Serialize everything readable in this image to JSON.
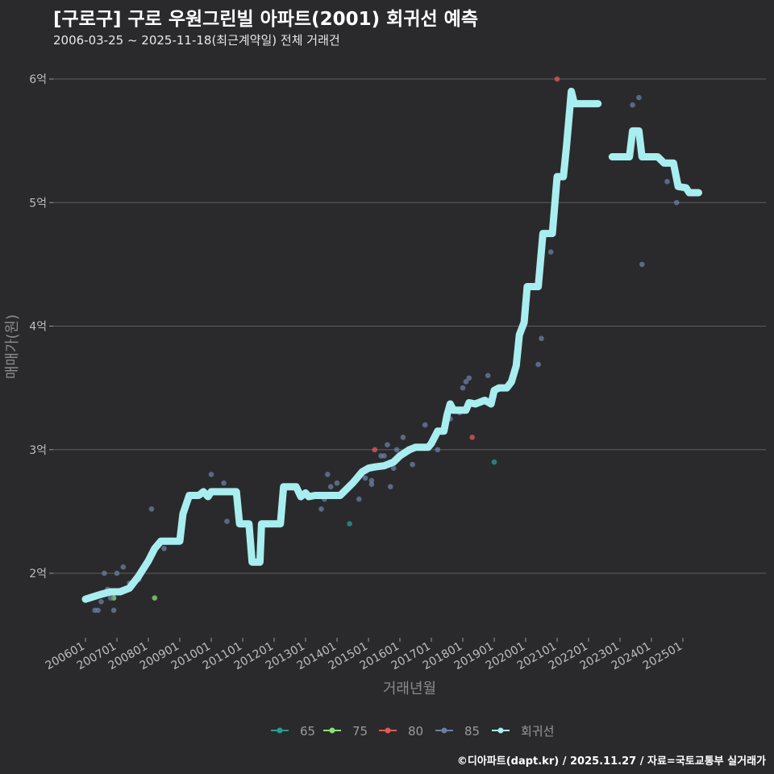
{
  "header": {
    "title": "[구로구] 구로 우원그린빌 아파트(2001) 회귀선 예측",
    "subtitle": "2006-03-25 ~ 2025-11-18(최근계약일) 전체 거래건"
  },
  "footer": {
    "credit": "©디아파트(dapt.kr) / 2025.11.27 / 자료=국토교통부 실거래가"
  },
  "colors": {
    "background": "#2a2a2c",
    "grid": "#5e5e5e",
    "s65": "#2a9d8f",
    "s75": "#8ee07a",
    "s80": "#e05a5a",
    "s85": "#6b7fa3",
    "regression": "#a8eef0"
  },
  "chart_data": {
    "type": "scatter",
    "title": "[구로구] 구로 우원그린빌 아파트(2001) 회귀선 예측",
    "xlabel": "거래년월",
    "ylabel": "매매가(원)",
    "xlim": [
      2006.0,
      2026.7
    ],
    "ylim": [
      1.5,
      6.3
    ],
    "y_ticks": [
      2,
      3,
      4,
      5,
      6
    ],
    "y_tick_labels": [
      "2억",
      "3억",
      "4억",
      "5억",
      "6억"
    ],
    "x_ticks": [
      2006,
      2007,
      2008,
      2009,
      2010,
      2011,
      2012,
      2013,
      2014,
      2015,
      2016,
      2017,
      2018,
      2019,
      2020,
      2021,
      2022,
      2023,
      2024,
      2025
    ],
    "x_tick_labels": [
      "200601",
      "200701",
      "200801",
      "200901",
      "201001",
      "201101",
      "201201",
      "201301",
      "201401",
      "201501",
      "201601",
      "201701",
      "201801",
      "201901",
      "202001",
      "202101",
      "202201",
      "202301",
      "202401",
      "202501"
    ],
    "legend": [
      "65",
      "75",
      "80",
      "85",
      "회귀선"
    ],
    "legend_position": "bottom",
    "series": [
      {
        "name": "65",
        "points": [
          [
            2014.4,
            2.4
          ],
          [
            2019.0,
            2.9
          ]
        ]
      },
      {
        "name": "75",
        "points": [
          [
            2006.9,
            1.8
          ],
          [
            2008.2,
            1.8
          ]
        ]
      },
      {
        "name": "80",
        "points": [
          [
            2015.2,
            3.0
          ],
          [
            2018.3,
            3.1
          ],
          [
            2021.0,
            6.0
          ]
        ]
      },
      {
        "name": "85",
        "points": [
          [
            2006.3,
            1.7
          ],
          [
            2006.4,
            1.7
          ],
          [
            2006.5,
            1.77
          ],
          [
            2006.6,
            2.0
          ],
          [
            2006.7,
            1.87
          ],
          [
            2006.8,
            1.8
          ],
          [
            2006.9,
            1.7
          ],
          [
            2007.0,
            2.0
          ],
          [
            2007.2,
            2.05
          ],
          [
            2007.4,
            1.92
          ],
          [
            2007.7,
            1.95
          ],
          [
            2008.1,
            2.52
          ],
          [
            2008.5,
            2.2
          ],
          [
            2009.3,
            2.62
          ],
          [
            2009.7,
            2.65
          ],
          [
            2010.0,
            2.8
          ],
          [
            2010.4,
            2.73
          ],
          [
            2010.5,
            2.42
          ],
          [
            2013.5,
            2.52
          ],
          [
            2013.6,
            2.6
          ],
          [
            2013.7,
            2.8
          ],
          [
            2013.8,
            2.7
          ],
          [
            2014.0,
            2.73
          ],
          [
            2014.7,
            2.6
          ],
          [
            2014.9,
            2.77
          ],
          [
            2015.1,
            2.75
          ],
          [
            2015.1,
            2.72
          ],
          [
            2015.4,
            2.95
          ],
          [
            2015.5,
            2.95
          ],
          [
            2015.6,
            3.04
          ],
          [
            2015.7,
            2.7
          ],
          [
            2015.8,
            2.85
          ],
          [
            2015.9,
            3.0
          ],
          [
            2016.1,
            3.1
          ],
          [
            2016.4,
            2.88
          ],
          [
            2016.8,
            3.2
          ],
          [
            2017.2,
            3.0
          ],
          [
            2017.6,
            3.25
          ],
          [
            2017.9,
            3.3
          ],
          [
            2018.0,
            3.5
          ],
          [
            2018.1,
            3.55
          ],
          [
            2018.2,
            3.58
          ],
          [
            2018.8,
            3.6
          ],
          [
            2020.4,
            3.69
          ],
          [
            2020.5,
            3.9
          ],
          [
            2020.8,
            4.6
          ],
          [
            2021.5,
            5.8
          ],
          [
            2023.4,
            5.79
          ],
          [
            2023.6,
            5.85
          ],
          [
            2023.7,
            4.5
          ],
          [
            2024.5,
            5.17
          ],
          [
            2024.8,
            5.0
          ]
        ]
      }
    ],
    "regression_line": [
      [
        2006.0,
        1.79
      ],
      [
        2006.5,
        1.83
      ],
      [
        2006.8,
        1.85
      ],
      [
        2007.1,
        1.85
      ],
      [
        2007.4,
        1.88
      ],
      [
        2007.7,
        1.98
      ],
      [
        2008.0,
        2.1
      ],
      [
        2008.2,
        2.2
      ],
      [
        2008.4,
        2.26
      ],
      [
        2008.8,
        2.26
      ],
      [
        2009.0,
        2.26
      ],
      [
        2009.1,
        2.48
      ],
      [
        2009.3,
        2.63
      ],
      [
        2009.6,
        2.63
      ],
      [
        2009.75,
        2.66
      ],
      [
        2009.9,
        2.62
      ],
      [
        2010.0,
        2.66
      ],
      [
        2010.3,
        2.66
      ],
      [
        2010.6,
        2.66
      ],
      [
        2010.8,
        2.66
      ],
      [
        2010.9,
        2.4
      ],
      [
        2011.2,
        2.4
      ],
      [
        2011.3,
        2.09
      ],
      [
        2011.55,
        2.09
      ],
      [
        2011.6,
        2.4
      ],
      [
        2012.05,
        2.4
      ],
      [
        2012.2,
        2.4
      ],
      [
        2012.3,
        2.7
      ],
      [
        2012.7,
        2.7
      ],
      [
        2012.85,
        2.62
      ],
      [
        2013.0,
        2.65
      ],
      [
        2013.1,
        2.62
      ],
      [
        2013.3,
        2.63
      ],
      [
        2013.6,
        2.63
      ],
      [
        2013.9,
        2.63
      ],
      [
        2014.1,
        2.63
      ],
      [
        2014.3,
        2.68
      ],
      [
        2014.5,
        2.73
      ],
      [
        2014.8,
        2.82
      ],
      [
        2015.0,
        2.85
      ],
      [
        2015.2,
        2.86
      ],
      [
        2015.5,
        2.87
      ],
      [
        2015.8,
        2.9
      ],
      [
        2016.0,
        2.95
      ],
      [
        2016.3,
        3.0
      ],
      [
        2016.5,
        3.02
      ],
      [
        2016.9,
        3.02
      ],
      [
        2017.0,
        3.05
      ],
      [
        2017.2,
        3.15
      ],
      [
        2017.4,
        3.15
      ],
      [
        2017.5,
        3.28
      ],
      [
        2017.6,
        3.37
      ],
      [
        2017.7,
        3.32
      ],
      [
        2018.1,
        3.32
      ],
      [
        2018.2,
        3.38
      ],
      [
        2018.4,
        3.37
      ],
      [
        2018.7,
        3.4
      ],
      [
        2018.9,
        3.37
      ],
      [
        2019.0,
        3.48
      ],
      [
        2019.15,
        3.5
      ],
      [
        2019.4,
        3.5
      ],
      [
        2019.55,
        3.55
      ],
      [
        2019.7,
        3.68
      ],
      [
        2019.8,
        3.93
      ],
      [
        2019.95,
        4.03
      ],
      [
        2020.05,
        4.32
      ],
      [
        2020.4,
        4.32
      ],
      [
        2020.55,
        4.75
      ],
      [
        2020.85,
        4.75
      ],
      [
        2021.0,
        5.21
      ],
      [
        2021.2,
        5.21
      ],
      [
        2021.3,
        5.46
      ],
      [
        2021.45,
        5.9
      ],
      [
        2021.55,
        5.8
      ],
      [
        2022.3,
        5.8
      ],
      null,
      [
        2022.75,
        5.37
      ],
      [
        2023.3,
        5.37
      ],
      [
        2023.4,
        5.58
      ],
      [
        2023.6,
        5.58
      ],
      [
        2023.7,
        5.37
      ],
      [
        2024.2,
        5.37
      ],
      [
        2024.4,
        5.32
      ],
      [
        2024.7,
        5.32
      ],
      [
        2024.85,
        5.13
      ],
      [
        2025.1,
        5.12
      ],
      [
        2025.2,
        5.08
      ],
      [
        2025.5,
        5.08
      ]
    ]
  },
  "legend_items": [
    {
      "label": "65",
      "color": "#2a9d8f"
    },
    {
      "label": "75",
      "color": "#8ee07a"
    },
    {
      "label": "80",
      "color": "#e05a5a"
    },
    {
      "label": "85",
      "color": "#6b7fa3"
    },
    {
      "label": "회귀선",
      "color": "#a8eef0"
    }
  ]
}
